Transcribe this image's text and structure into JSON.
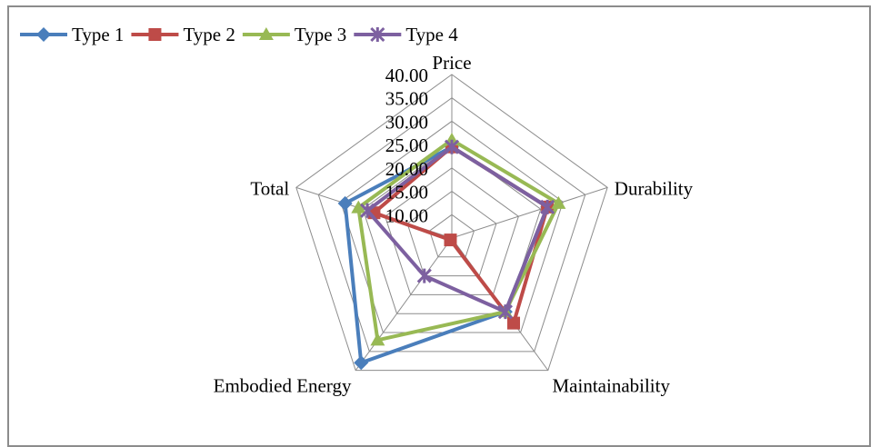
{
  "chart_data": {
    "type": "radar",
    "categories": [
      "Price",
      "Durability",
      "Maintainability",
      "Embodied Energy",
      "Total"
    ],
    "series": [
      {
        "name": "Type 1",
        "color": "#4a7ebb",
        "marker": "diamond",
        "values": [
          24.5,
          26.5,
          24.5,
          38.0,
          29.0
        ]
      },
      {
        "name": "Type 2",
        "color": "#be4b48",
        "marker": "square",
        "values": [
          24.5,
          26.5,
          27.5,
          5.5,
          22.5
        ]
      },
      {
        "name": "Type 3",
        "color": "#98b954",
        "marker": "triangle",
        "values": [
          26.0,
          29.0,
          24.5,
          32.0,
          26.0
        ]
      },
      {
        "name": "Type 4",
        "color": "#7d60a0",
        "marker": "x-star",
        "values": [
          24.5,
          26.5,
          24.5,
          15.0,
          24.0
        ]
      }
    ],
    "axis": {
      "min": 5,
      "max": 40,
      "step": 5,
      "tick_labels": [
        "10.00",
        "15.00",
        "20.00",
        "25.00",
        "30.00",
        "35.00",
        "40.00"
      ]
    },
    "grid": true,
    "legend_position": "top-left"
  }
}
